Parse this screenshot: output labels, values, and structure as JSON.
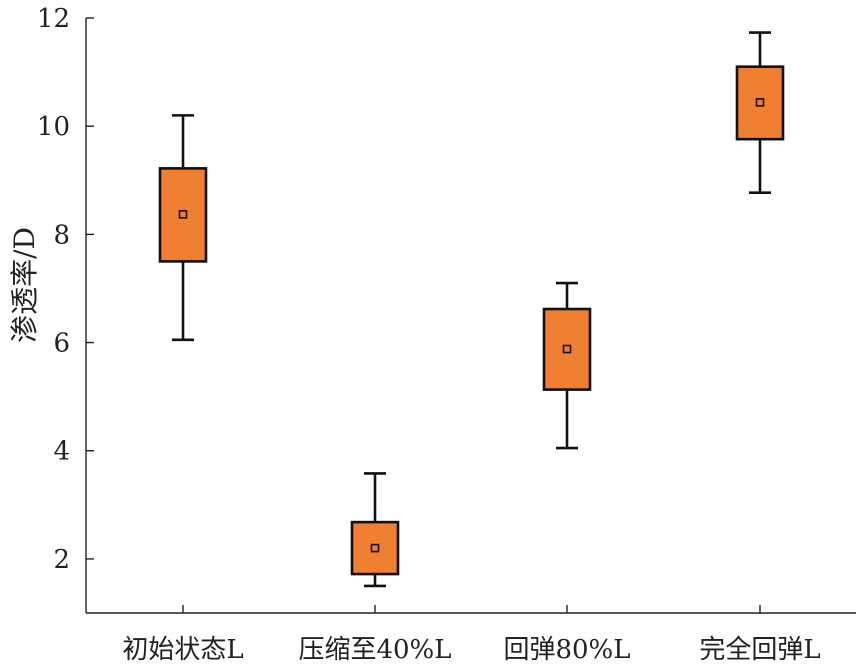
{
  "chart_data": {
    "type": "box",
    "ylabel": "渗透率/D",
    "ylim": [
      1,
      12
    ],
    "yticks": [
      2,
      4,
      6,
      8,
      10,
      12
    ],
    "grid": false,
    "box_color": "#F07F31",
    "edge_color": "#111111",
    "categories": [
      "初始状态L",
      "压缩至40%L",
      "回弹80%L",
      "完全回弹L"
    ],
    "boxes": [
      {
        "category": "初始状态L",
        "min": 6.05,
        "q1": 7.5,
        "mean": 8.37,
        "q3": 9.22,
        "max": 10.2
      },
      {
        "category": "压缩至40%L",
        "min": 1.5,
        "q1": 1.72,
        "mean": 2.2,
        "q3": 2.68,
        "max": 3.58
      },
      {
        "category": "回弹80%L",
        "min": 4.05,
        "q1": 5.13,
        "mean": 5.88,
        "q3": 6.62,
        "max": 7.1
      },
      {
        "category": "完全回弹L",
        "min": 8.77,
        "q1": 9.76,
        "mean": 10.44,
        "q3": 11.1,
        "max": 11.73
      }
    ]
  }
}
